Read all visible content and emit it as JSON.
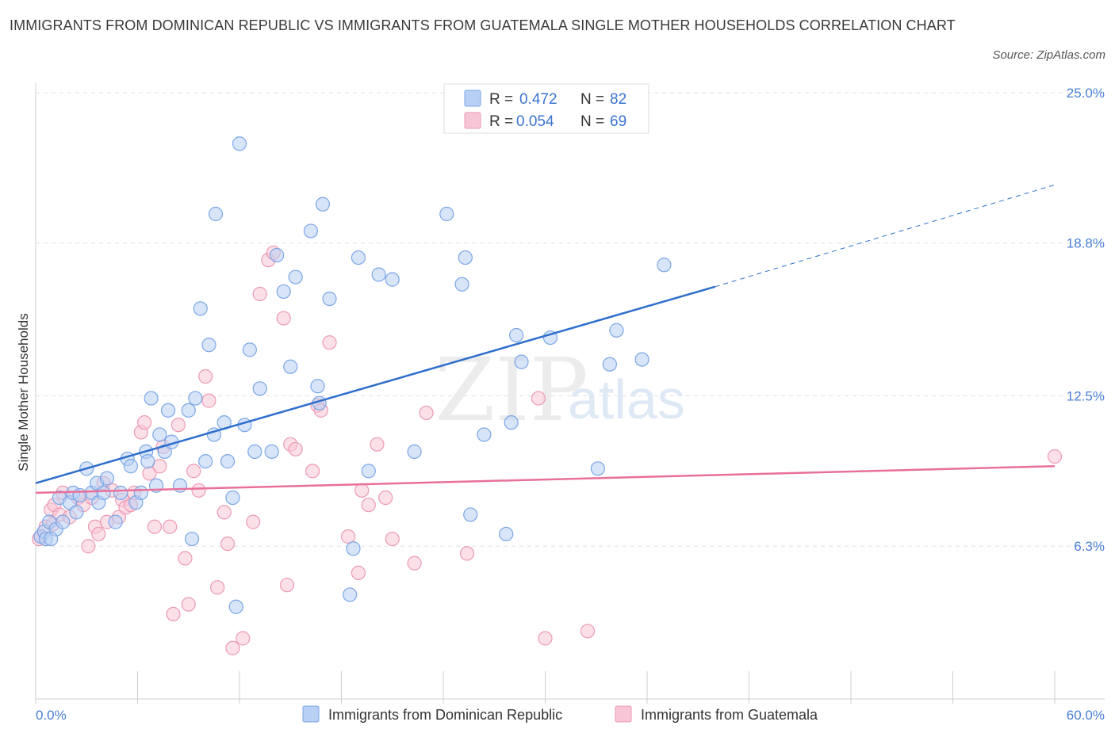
{
  "header": {
    "title": "IMMIGRANTS FROM DOMINICAN REPUBLIC VS IMMIGRANTS FROM GUATEMALA SINGLE MOTHER HOUSEHOLDS CORRELATION CHART",
    "source": "Source: ZipAtlas.com"
  },
  "watermark": {
    "zip": "ZIP",
    "atlas": "atlas"
  },
  "legend": {
    "r_label": "R =",
    "n_label": "N =",
    "series1": {
      "r": "0.472",
      "n": "82"
    },
    "series2": {
      "r": "0.054",
      "n": "69"
    }
  },
  "bottom_legend": {
    "series1": "Immigrants from Dominican Republic",
    "series2": "Immigrants from Guatemala"
  },
  "colors": {
    "blue_fill": "#b8d0f4",
    "blue_stroke": "#7aa6e6",
    "blue_line": "#2f6fcc",
    "pink_fill": "#f7c6d6",
    "pink_stroke": "#ec9ab5",
    "pink_line": "#e8709a",
    "tick_label": "#4a7fd4"
  },
  "chart_data": {
    "type": "scatter",
    "title": "IMMIGRANTS FROM DOMINICAN REPUBLIC VS IMMIGRANTS FROM GUATEMALA SINGLE MOTHER HOUSEHOLDS CORRELATION CHART",
    "xlabel": "",
    "ylabel": "Single Mother Households",
    "xlim": [
      0,
      60
    ],
    "ylim": [
      0,
      25
    ],
    "x_tick_labels": [
      "0.0%",
      "60.0%"
    ],
    "y_ticks": [
      6.3,
      12.5,
      18.8,
      25.0
    ],
    "y_tick_labels": [
      "6.3%",
      "12.5%",
      "18.8%",
      "25.0%"
    ],
    "grid": true,
    "legend_position": "top-center",
    "series": [
      {
        "name": "Immigrants from Dominican Republic",
        "r": 0.472,
        "n": 82,
        "trend": {
          "x": [
            0,
            40
          ],
          "y": [
            8.9,
            17.0
          ],
          "dashed_to": [
            60,
            21.2
          ]
        },
        "points": [
          [
            0.3,
            6.7
          ],
          [
            0.5,
            6.9
          ],
          [
            0.6,
            6.6
          ],
          [
            0.8,
            7.3
          ],
          [
            1.2,
            7.0
          ],
          [
            1.4,
            8.3
          ],
          [
            1.6,
            7.3
          ],
          [
            2.0,
            8.1
          ],
          [
            2.2,
            8.5
          ],
          [
            2.6,
            8.4
          ],
          [
            3.0,
            9.5
          ],
          [
            3.3,
            8.5
          ],
          [
            3.6,
            8.9
          ],
          [
            3.7,
            8.1
          ],
          [
            4.0,
            8.5
          ],
          [
            4.2,
            9.1
          ],
          [
            4.7,
            7.3
          ],
          [
            5.0,
            8.5
          ],
          [
            5.4,
            9.9
          ],
          [
            5.6,
            9.6
          ],
          [
            5.9,
            8.1
          ],
          [
            6.2,
            8.5
          ],
          [
            6.5,
            10.2
          ],
          [
            6.6,
            9.8
          ],
          [
            6.8,
            12.4
          ],
          [
            7.1,
            8.8
          ],
          [
            7.3,
            10.9
          ],
          [
            7.6,
            10.2
          ],
          [
            7.8,
            11.9
          ],
          [
            8.0,
            10.6
          ],
          [
            8.5,
            8.8
          ],
          [
            9.0,
            11.9
          ],
          [
            9.2,
            6.6
          ],
          [
            9.4,
            12.4
          ],
          [
            9.7,
            16.1
          ],
          [
            10.0,
            9.8
          ],
          [
            10.2,
            14.6
          ],
          [
            10.5,
            10.9
          ],
          [
            10.6,
            20.0
          ],
          [
            11.1,
            11.4
          ],
          [
            11.3,
            9.8
          ],
          [
            11.6,
            8.3
          ],
          [
            11.8,
            3.8
          ],
          [
            12.0,
            22.9
          ],
          [
            12.3,
            11.3
          ],
          [
            12.6,
            14.4
          ],
          [
            12.9,
            10.2
          ],
          [
            13.2,
            12.8
          ],
          [
            13.9,
            10.2
          ],
          [
            14.2,
            18.3
          ],
          [
            14.6,
            16.8
          ],
          [
            15.0,
            13.7
          ],
          [
            15.3,
            17.4
          ],
          [
            16.2,
            19.3
          ],
          [
            16.6,
            12.9
          ],
          [
            16.7,
            12.2
          ],
          [
            16.9,
            20.4
          ],
          [
            17.3,
            16.5
          ],
          [
            18.5,
            4.3
          ],
          [
            18.7,
            6.2
          ],
          [
            19.0,
            18.2
          ],
          [
            19.6,
            9.4
          ],
          [
            20.2,
            17.5
          ],
          [
            21.0,
            17.3
          ],
          [
            22.3,
            10.2
          ],
          [
            24.2,
            20.0
          ],
          [
            25.1,
            17.1
          ],
          [
            25.3,
            18.2
          ],
          [
            25.6,
            7.6
          ],
          [
            26.4,
            10.9
          ],
          [
            27.7,
            6.8
          ],
          [
            28.0,
            11.4
          ],
          [
            28.3,
            15.0
          ],
          [
            28.6,
            13.9
          ],
          [
            30.3,
            14.9
          ],
          [
            33.1,
            9.5
          ],
          [
            33.8,
            13.8
          ],
          [
            34.2,
            15.2
          ],
          [
            35.7,
            14.0
          ],
          [
            37.0,
            17.9
          ],
          [
            2.4,
            7.7
          ],
          [
            0.9,
            6.6
          ]
        ]
      },
      {
        "name": "Immigrants from Guatemala",
        "r": 0.054,
        "n": 69,
        "trend": {
          "x": [
            0,
            60
          ],
          "y": [
            8.5,
            9.6
          ]
        },
        "points": [
          [
            0.3,
            6.7
          ],
          [
            0.6,
            7.1
          ],
          [
            0.9,
            7.8
          ],
          [
            1.1,
            8.0
          ],
          [
            1.4,
            7.6
          ],
          [
            1.6,
            8.5
          ],
          [
            2.0,
            7.5
          ],
          [
            2.5,
            8.3
          ],
          [
            2.8,
            8.0
          ],
          [
            3.1,
            6.3
          ],
          [
            3.5,
            7.1
          ],
          [
            3.7,
            6.8
          ],
          [
            4.0,
            8.9
          ],
          [
            4.2,
            7.3
          ],
          [
            4.5,
            8.6
          ],
          [
            4.9,
            7.5
          ],
          [
            5.1,
            8.2
          ],
          [
            5.3,
            7.9
          ],
          [
            5.8,
            8.5
          ],
          [
            6.2,
            11.0
          ],
          [
            6.4,
            11.4
          ],
          [
            6.7,
            9.3
          ],
          [
            7.0,
            7.1
          ],
          [
            7.3,
            9.6
          ],
          [
            7.5,
            10.4
          ],
          [
            7.9,
            7.1
          ],
          [
            8.1,
            3.5
          ],
          [
            8.4,
            11.3
          ],
          [
            8.8,
            5.8
          ],
          [
            9.0,
            3.9
          ],
          [
            9.3,
            9.4
          ],
          [
            9.6,
            8.6
          ],
          [
            10.0,
            13.3
          ],
          [
            10.2,
            12.3
          ],
          [
            10.7,
            4.6
          ],
          [
            11.1,
            7.7
          ],
          [
            11.3,
            6.4
          ],
          [
            11.6,
            2.1
          ],
          [
            12.2,
            2.5
          ],
          [
            12.8,
            7.3
          ],
          [
            13.2,
            16.7
          ],
          [
            13.7,
            18.1
          ],
          [
            14.0,
            18.4
          ],
          [
            14.6,
            15.7
          ],
          [
            14.8,
            4.7
          ],
          [
            15.0,
            10.5
          ],
          [
            15.3,
            10.3
          ],
          [
            16.3,
            9.4
          ],
          [
            16.6,
            12.1
          ],
          [
            16.8,
            11.9
          ],
          [
            17.3,
            14.7
          ],
          [
            18.4,
            6.7
          ],
          [
            19.0,
            5.2
          ],
          [
            19.2,
            8.6
          ],
          [
            19.6,
            8.0
          ],
          [
            20.1,
            10.5
          ],
          [
            20.6,
            8.3
          ],
          [
            21.0,
            6.6
          ],
          [
            22.3,
            5.6
          ],
          [
            23.0,
            11.8
          ],
          [
            25.4,
            6.0
          ],
          [
            29.6,
            12.4
          ],
          [
            30.0,
            2.5
          ],
          [
            32.5,
            2.8
          ],
          [
            60.0,
            10.0
          ],
          [
            0.2,
            6.6
          ],
          [
            1.0,
            7.2
          ],
          [
            3.3,
            8.3
          ],
          [
            5.6,
            8.0
          ]
        ]
      }
    ]
  }
}
